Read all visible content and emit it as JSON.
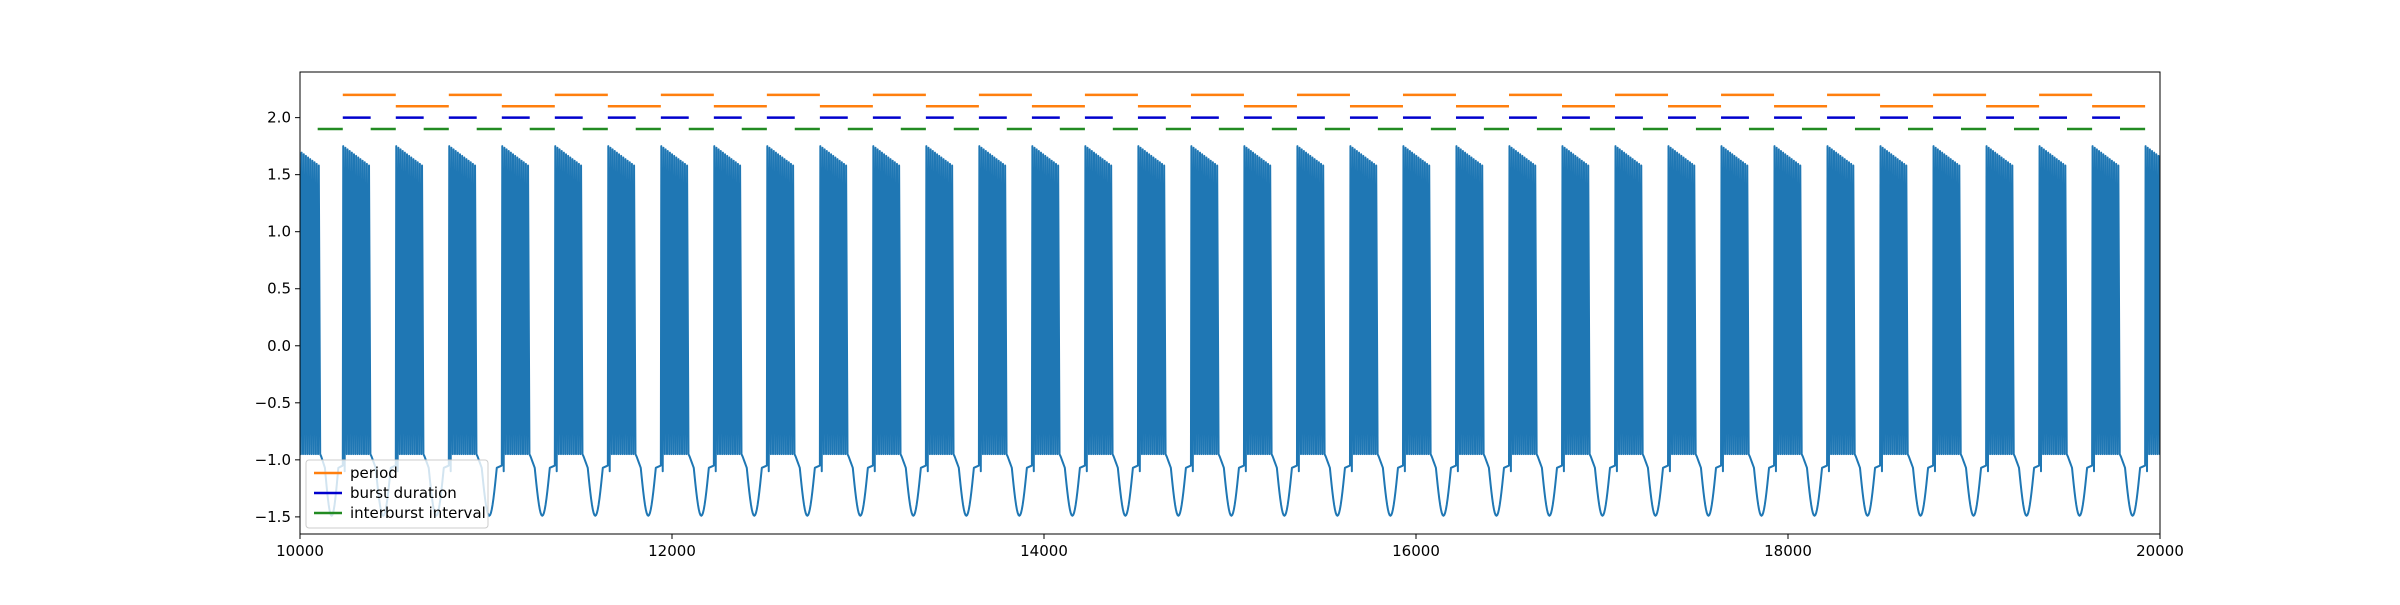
{
  "chart_data": {
    "type": "line",
    "title": "",
    "xlabel": "",
    "ylabel": "",
    "xlim": [
      10000,
      20000
    ],
    "ylim": [
      -1.65,
      2.4
    ],
    "x_ticks": [
      10000,
      12000,
      14000,
      16000,
      18000,
      20000
    ],
    "x_tick_labels": [
      "10000",
      "12000",
      "14000",
      "16000",
      "18000",
      "20000"
    ],
    "y_ticks": [
      -1.5,
      -1.0,
      -0.5,
      0.0,
      0.5,
      1.0,
      1.5,
      2.0
    ],
    "y_tick_labels": [
      "−1.5",
      "−1.0",
      "−0.5",
      "0.0",
      "0.5",
      "1.0",
      "1.5",
      "2.0"
    ],
    "grid": false,
    "legend": {
      "position": "lower-left",
      "entries": [
        {
          "label": "period",
          "color": "#ff7f0e"
        },
        {
          "label": "burst duration",
          "color": "#0000cd"
        },
        {
          "label": "interburst interval",
          "color": "#228b22"
        }
      ]
    },
    "voltage_trace": {
      "color": "#1f77b4",
      "burst_starts": [
        9960,
        10230,
        10515,
        10800,
        11085,
        11370,
        11655,
        11940,
        12225,
        12510,
        12795,
        13080,
        13365,
        13650,
        13935,
        14220,
        14505,
        14790,
        15075,
        15360,
        15645,
        15930,
        16215,
        16500,
        16785,
        17070,
        17355,
        17640,
        17925,
        18210,
        18495,
        18780,
        19065,
        19350,
        19635,
        19920
      ],
      "burst_duration": 150,
      "spikes_per_burst": 13,
      "spike_peak_start": 1.75,
      "spike_peak_end": 1.58,
      "spike_trough": -0.95,
      "interburst_minimum": -1.49
    },
    "measurement_lines": {
      "period": {
        "color": "#ff7f0e",
        "levels": [
          2.2,
          2.1
        ],
        "segments": [
          [
            10230,
            10515
          ],
          [
            10515,
            10800
          ],
          [
            10800,
            11085
          ],
          [
            11085,
            11370
          ],
          [
            11370,
            11655
          ],
          [
            11655,
            11940
          ],
          [
            11940,
            12225
          ],
          [
            12225,
            12510
          ],
          [
            12510,
            12795
          ],
          [
            12795,
            13080
          ],
          [
            13080,
            13365
          ],
          [
            13365,
            13650
          ],
          [
            13650,
            13935
          ],
          [
            13935,
            14220
          ],
          [
            14220,
            14505
          ],
          [
            14505,
            14790
          ],
          [
            14790,
            15075
          ],
          [
            15075,
            15360
          ],
          [
            15360,
            15645
          ],
          [
            15645,
            15930
          ],
          [
            15930,
            16215
          ],
          [
            16215,
            16500
          ],
          [
            16500,
            16785
          ],
          [
            16785,
            17070
          ],
          [
            17070,
            17355
          ],
          [
            17355,
            17640
          ],
          [
            17640,
            17925
          ],
          [
            17925,
            18210
          ],
          [
            18210,
            18495
          ],
          [
            18495,
            18780
          ],
          [
            18780,
            19065
          ],
          [
            19065,
            19350
          ],
          [
            19350,
            19635
          ],
          [
            19635,
            19920
          ]
        ]
      },
      "burst_duration": {
        "color": "#0000cd",
        "level": 2.0,
        "segments": [
          [
            10230,
            10380
          ],
          [
            10515,
            10665
          ],
          [
            10800,
            10950
          ],
          [
            11085,
            11235
          ],
          [
            11370,
            11520
          ],
          [
            11655,
            11805
          ],
          [
            11940,
            12090
          ],
          [
            12225,
            12375
          ],
          [
            12510,
            12660
          ],
          [
            12795,
            12945
          ],
          [
            13080,
            13230
          ],
          [
            13365,
            13515
          ],
          [
            13650,
            13800
          ],
          [
            13935,
            14085
          ],
          [
            14220,
            14370
          ],
          [
            14505,
            14655
          ],
          [
            14790,
            14940
          ],
          [
            15075,
            15225
          ],
          [
            15360,
            15510
          ],
          [
            15645,
            15795
          ],
          [
            15930,
            16080
          ],
          [
            16215,
            16365
          ],
          [
            16500,
            16650
          ],
          [
            16785,
            16935
          ],
          [
            17070,
            17220
          ],
          [
            17355,
            17505
          ],
          [
            17640,
            17790
          ],
          [
            17925,
            18075
          ],
          [
            18210,
            18360
          ],
          [
            18495,
            18645
          ],
          [
            18780,
            18930
          ],
          [
            19065,
            19215
          ],
          [
            19350,
            19500
          ],
          [
            19635,
            19785
          ]
        ]
      },
      "interburst_interval": {
        "color": "#228b22",
        "level": 1.9,
        "segments": [
          [
            10095,
            10230
          ],
          [
            10380,
            10515
          ],
          [
            10665,
            10800
          ],
          [
            10950,
            11085
          ],
          [
            11235,
            11370
          ],
          [
            11520,
            11655
          ],
          [
            11805,
            11940
          ],
          [
            12090,
            12225
          ],
          [
            12375,
            12510
          ],
          [
            12660,
            12795
          ],
          [
            12945,
            13080
          ],
          [
            13230,
            13365
          ],
          [
            13515,
            13650
          ],
          [
            13800,
            13935
          ],
          [
            14085,
            14220
          ],
          [
            14370,
            14505
          ],
          [
            14655,
            14790
          ],
          [
            14940,
            15075
          ],
          [
            15225,
            15360
          ],
          [
            15510,
            15645
          ],
          [
            15795,
            15930
          ],
          [
            16080,
            16215
          ],
          [
            16365,
            16500
          ],
          [
            16650,
            16785
          ],
          [
            16935,
            17070
          ],
          [
            17220,
            17355
          ],
          [
            17505,
            17640
          ],
          [
            17790,
            17925
          ],
          [
            18075,
            18210
          ],
          [
            18360,
            18495
          ],
          [
            18645,
            18780
          ],
          [
            18930,
            19065
          ],
          [
            19215,
            19350
          ],
          [
            19500,
            19635
          ],
          [
            19785,
            19920
          ]
        ]
      }
    }
  }
}
